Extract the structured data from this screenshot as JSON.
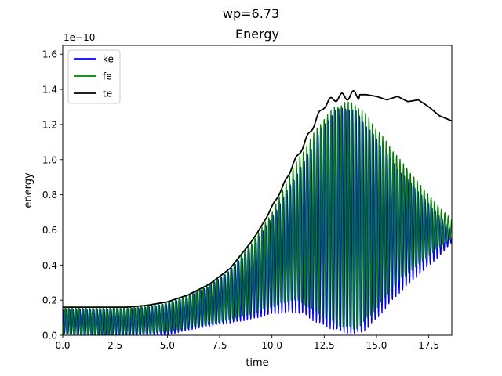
{
  "chart_data": {
    "type": "line",
    "suptitle": "wp=6.73",
    "title": "Energy",
    "xlabel": "time",
    "ylabel": "energy",
    "offset_text": "1e−10",
    "xlim": [
      0,
      18.6
    ],
    "ylim": [
      0,
      1.65
    ],
    "x_ticks": [
      0,
      2.5,
      5,
      7.5,
      10,
      12.5,
      15,
      17.5
    ],
    "x_tick_labels": [
      "0.0",
      "2.5",
      "5.0",
      "7.5",
      "10.0",
      "12.5",
      "15.0",
      "17.5"
    ],
    "y_ticks": [
      0,
      0.2,
      0.4,
      0.6,
      0.8,
      1.0,
      1.2,
      1.4,
      1.6
    ],
    "y_tick_labels": [
      "0.0",
      "0.2",
      "0.4",
      "0.6",
      "0.8",
      "1.0",
      "1.2",
      "1.4",
      "1.6"
    ],
    "grid": false,
    "legend_position": "top-left",
    "series": [
      {
        "name": "ke",
        "color": "#0000ff",
        "style": "oscillating",
        "x": [
          0,
          1,
          2,
          3,
          4,
          5,
          6,
          7,
          8,
          9,
          10,
          11,
          11.5,
          12,
          12.5,
          13,
          13.5,
          14,
          14.5,
          15,
          16,
          17,
          18,
          18.6
        ],
        "upper": [
          0.15,
          0.15,
          0.15,
          0.15,
          0.16,
          0.18,
          0.22,
          0.28,
          0.37,
          0.5,
          0.67,
          0.88,
          0.98,
          1.1,
          1.2,
          1.28,
          1.3,
          1.28,
          1.2,
          1.12,
          0.95,
          0.82,
          0.68,
          0.6
        ],
        "lower": [
          0.01,
          0.0,
          0.0,
          0.0,
          0.0,
          0.0,
          0.03,
          0.05,
          0.07,
          0.09,
          0.12,
          0.13,
          0.12,
          0.08,
          0.05,
          0.03,
          0.01,
          0.0,
          0.03,
          0.09,
          0.23,
          0.34,
          0.45,
          0.53
        ]
      },
      {
        "name": "fe",
        "color": "#008000",
        "style": "oscillating",
        "x": [
          0,
          1,
          2,
          3,
          4,
          5,
          6,
          7,
          8,
          9,
          10,
          11,
          11.5,
          12,
          12.5,
          13,
          13.5,
          14,
          14.5,
          15,
          16,
          17,
          18,
          18.6
        ],
        "upper": [
          0.16,
          0.16,
          0.16,
          0.16,
          0.17,
          0.19,
          0.23,
          0.29,
          0.38,
          0.52,
          0.7,
          0.95,
          1.05,
          1.15,
          1.24,
          1.3,
          1.33,
          1.32,
          1.26,
          1.18,
          1.02,
          0.87,
          0.73,
          0.66
        ],
        "lower": [
          0.0,
          0.0,
          0.0,
          0.0,
          0.01,
          0.02,
          0.04,
          0.06,
          0.09,
          0.12,
          0.16,
          0.2,
          0.18,
          0.14,
          0.1,
          0.06,
          0.04,
          0.03,
          0.08,
          0.15,
          0.3,
          0.4,
          0.5,
          0.55
        ]
      },
      {
        "name": "te",
        "color": "#000000",
        "style": "line",
        "x": [
          0,
          1,
          2,
          3,
          4,
          5,
          6,
          7,
          8,
          9,
          9.5,
          10,
          10.5,
          11,
          11.5,
          12,
          12.5,
          13,
          13.5,
          14,
          14.5,
          15,
          15.5,
          16,
          16.5,
          17,
          17.5,
          18,
          18.6
        ],
        "values": [
          0.16,
          0.16,
          0.16,
          0.16,
          0.17,
          0.19,
          0.23,
          0.29,
          0.38,
          0.53,
          0.62,
          0.73,
          0.84,
          0.97,
          1.08,
          1.2,
          1.31,
          1.35,
          1.36,
          1.37,
          1.37,
          1.36,
          1.34,
          1.36,
          1.33,
          1.34,
          1.3,
          1.25,
          1.22
        ]
      }
    ]
  }
}
